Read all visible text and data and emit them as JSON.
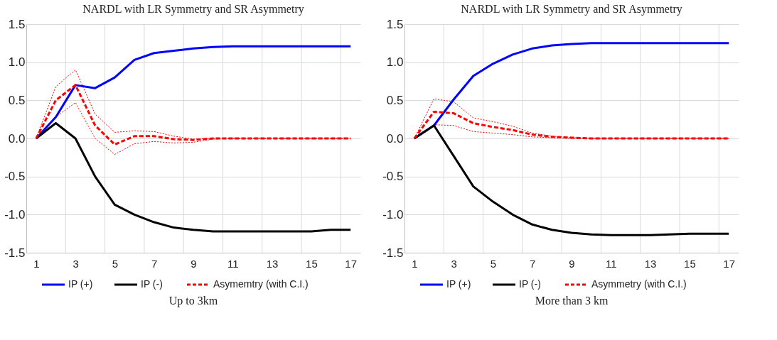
{
  "chart_data": [
    {
      "type": "line",
      "title": "NARDL with LR Symmetry and SR Asymmetry",
      "x": [
        1,
        2,
        3,
        4,
        5,
        6,
        7,
        8,
        9,
        10,
        11,
        12,
        13,
        14,
        15,
        16,
        17
      ],
      "xlim": [
        0.5,
        17.5
      ],
      "xticks": [
        1,
        {
          "value": 2.5,
          "label": null
        },
        3,
        {
          "value": 4.5,
          "label": null
        },
        5,
        {
          "value": 6.5,
          "label": null
        },
        7,
        {
          "value": 8.5,
          "label": null
        },
        9,
        {
          "value": 10.5,
          "label": null
        },
        11,
        {
          "value": 12.5,
          "label": null
        },
        13,
        {
          "value": 14.5,
          "label": null
        },
        15,
        {
          "value": 16.5,
          "label": null
        },
        17
      ],
      "ylim": [
        -1.5,
        1.5
      ],
      "yticks": [
        {
          "value": -1.5,
          "label": "-1.5"
        },
        {
          "value": -1,
          "label": "-1.0"
        },
        {
          "value": -0.5,
          "label": "-0.5"
        },
        {
          "value": 0,
          "label": "0.0"
        },
        {
          "value": 0.5,
          "label": "0.5"
        },
        {
          "value": 1,
          "label": "1.0"
        },
        {
          "value": 1.5,
          "label": "1.5"
        }
      ],
      "grid": true,
      "legend": "bottom",
      "series": [
        {
          "name": "IP (+)",
          "color": "#0000ff",
          "line_style": "solid",
          "values": [
            0,
            0.28,
            0.7,
            0.66,
            0.8,
            1.03,
            1.12,
            1.15,
            1.18,
            1.2,
            1.21,
            1.21,
            1.21,
            1.21,
            1.21,
            1.21,
            1.21
          ]
        },
        {
          "name": "IP (-)",
          "color": "#000000",
          "line_style": "solid",
          "values": [
            0,
            0.2,
            0.0,
            -0.5,
            -0.87,
            -1.0,
            -1.1,
            -1.17,
            -1.2,
            -1.22,
            -1.22,
            -1.22,
            -1.22,
            -1.22,
            -1.22,
            -1.2,
            -1.2
          ]
        },
        {
          "name": "Asymemtry (with C.I.)",
          "color": "#ff0000",
          "line_style": "dashed",
          "values": [
            0,
            0.5,
            0.7,
            0.17,
            -0.08,
            0.03,
            0.03,
            -0.01,
            -0.02,
            0,
            0,
            0,
            0,
            0,
            0,
            0,
            0
          ]
        },
        {
          "color": "#ff0000",
          "line_style": "dotted",
          "values": [
            0,
            0.68,
            0.9,
            0.32,
            0.08,
            0.1,
            0.09,
            0.03,
            -0.01,
            0,
            0,
            0,
            0,
            0,
            0,
            0,
            0
          ]
        },
        {
          "color": "#ff0000",
          "line_style": "dotted",
          "values": [
            0,
            0.28,
            0.47,
            0.0,
            -0.21,
            -0.07,
            -0.04,
            -0.06,
            -0.05,
            -0.01,
            0,
            0,
            0,
            0,
            0,
            0,
            0
          ]
        }
      ],
      "annotations": [
        "Up to 3km"
      ]
    },
    {
      "type": "line",
      "title": "NARDL with LR Symmetry and SR Asymmetry",
      "x": [
        1,
        2,
        3,
        4,
        5,
        6,
        7,
        8,
        9,
        10,
        11,
        12,
        13,
        14,
        15,
        16,
        17
      ],
      "xlim": [
        0.5,
        17.5
      ],
      "xticks": [
        1,
        {
          "value": 2.5,
          "label": null
        },
        3,
        {
          "value": 4.5,
          "label": null
        },
        5,
        {
          "value": 6.5,
          "label": null
        },
        7,
        {
          "value": 8.5,
          "label": null
        },
        9,
        {
          "value": 10.5,
          "label": null
        },
        11,
        {
          "value": 12.5,
          "label": null
        },
        13,
        {
          "value": 14.5,
          "label": null
        },
        15,
        {
          "value": 16.5,
          "label": null
        },
        17
      ],
      "ylim": [
        -1.5,
        1.5
      ],
      "yticks": [
        {
          "value": -1.5,
          "label": "-1.5"
        },
        {
          "value": -1,
          "label": "-1.0"
        },
        {
          "value": -0.5,
          "label": "-0.5"
        },
        {
          "value": 0,
          "label": "0.0"
        },
        {
          "value": 0.5,
          "label": "0.5"
        },
        {
          "value": 1,
          "label": "1.0"
        },
        {
          "value": 1.5,
          "label": "1.5"
        }
      ],
      "grid": true,
      "legend": "bottom",
      "series": [
        {
          "name": "IP (+)",
          "color": "#0000ff",
          "line_style": "solid",
          "values": [
            0,
            0.17,
            0.51,
            0.82,
            0.98,
            1.1,
            1.18,
            1.22,
            1.24,
            1.25,
            1.25,
            1.25,
            1.25,
            1.25,
            1.25,
            1.25,
            1.25
          ]
        },
        {
          "name": "IP (-)",
          "color": "#000000",
          "line_style": "solid",
          "values": [
            0,
            0.17,
            -0.23,
            -0.63,
            -0.83,
            -1.0,
            -1.13,
            -1.2,
            -1.24,
            -1.26,
            -1.27,
            -1.27,
            -1.27,
            -1.26,
            -1.25,
            -1.25,
            -1.25
          ]
        },
        {
          "name": "Asymmetry (with C.I.)",
          "color": "#ff0000",
          "line_style": "dashed",
          "values": [
            0,
            0.35,
            0.33,
            0.2,
            0.15,
            0.11,
            0.05,
            0.02,
            0.01,
            0,
            0,
            0,
            0,
            0,
            0,
            0,
            0
          ]
        },
        {
          "color": "#ff0000",
          "line_style": "dotted",
          "values": [
            0,
            0.52,
            0.48,
            0.27,
            0.22,
            0.16,
            0.07,
            0.03,
            0.01,
            0,
            0,
            0,
            0,
            0,
            0,
            0,
            0
          ]
        },
        {
          "color": "#ff0000",
          "line_style": "dotted",
          "values": [
            0,
            0.18,
            0.17,
            0.09,
            0.07,
            0.05,
            0.02,
            0.01,
            0,
            0,
            0,
            0,
            0,
            0,
            0,
            0,
            0
          ]
        }
      ],
      "annotations": [
        "More than 3 km"
      ]
    }
  ]
}
